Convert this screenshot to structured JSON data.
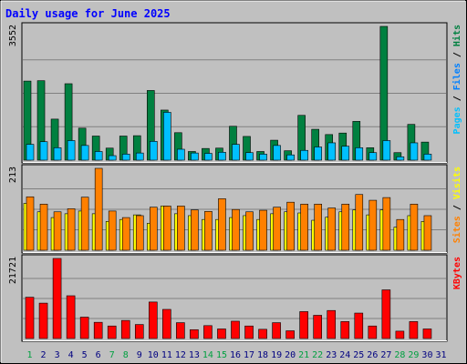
{
  "chart_data": {
    "type": "bar",
    "title": "Daily usage for June 2025",
    "days": [
      "1",
      "2",
      "3",
      "4",
      "5",
      "6",
      "7",
      "8",
      "9",
      "10",
      "11",
      "12",
      "13",
      "14",
      "15",
      "16",
      "17",
      "18",
      "19",
      "20",
      "21",
      "22",
      "23",
      "24",
      "25",
      "26",
      "27",
      "28",
      "29",
      "30",
      "31"
    ],
    "weekend_days": [
      "1",
      "7",
      "8",
      "14",
      "15",
      "21",
      "22",
      "28",
      "29"
    ],
    "colors": {
      "background": "#c0c0c0",
      "title": "#0000ff",
      "hits": "#008040",
      "files": "#0080ff",
      "pages": "#00c0ff",
      "visits": "#ffff00",
      "sites": "#ff8000",
      "kbytes": "#ff0000",
      "weekend_label": "#00a040",
      "weekday_label": "#000080"
    },
    "panels": [
      {
        "id": "hits",
        "max_label": "3552",
        "ymax": 3552,
        "legend": [
          {
            "text": "Pages",
            "color": "#00c0ff"
          },
          {
            "text": " / ",
            "color": "#000000"
          },
          {
            "text": "Files",
            "color": "#0080ff"
          },
          {
            "text": " / ",
            "color": "#000000"
          },
          {
            "text": "Hits",
            "color": "#008040"
          }
        ],
        "series": [
          {
            "name": "Hits",
            "color": "#008040",
            "values": [
              2100,
              2110,
              1090,
              2030,
              850,
              640,
              320,
              640,
              650,
              1850,
              1330,
              730,
              230,
              310,
              320,
              900,
              630,
              230,
              530,
              250,
              1190,
              820,
              680,
              720,
              1030,
              330,
              3552,
              200,
              950,
              480,
              0
            ]
          },
          {
            "name": "Pages",
            "color": "#00c0ff",
            "values": [
              420,
              490,
              330,
              520,
              390,
              230,
              120,
              160,
              190,
              500,
              1270,
              290,
              190,
              180,
              210,
              420,
              200,
              160,
              390,
              140,
              260,
              350,
              460,
              370,
              330,
              200,
              520,
              90,
              460,
              160,
              0
            ]
          }
        ]
      },
      {
        "id": "visits",
        "max_label": "213",
        "ymax": 213,
        "legend": [
          {
            "text": "Sites",
            "color": "#ff8000"
          },
          {
            "text": " / ",
            "color": "#000000"
          },
          {
            "text": "Visits",
            "color": "#ffff00"
          }
        ],
        "series": [
          {
            "name": "Visits",
            "color": "#ffff00",
            "values": [
              122,
              100,
              85,
              95,
              102,
              95,
              75,
              80,
              92,
              70,
              115,
              95,
              90,
              80,
              80,
              85,
              90,
              80,
              95,
              100,
              97,
              78,
              86,
              100,
              105,
              92,
              105,
              60,
              90,
              75,
              0
            ]
          },
          {
            "name": "Sites",
            "color": "#ff8000",
            "values": [
              139,
              120,
              100,
              108,
              138,
              213,
              102,
              85,
              90,
              112,
              115,
              115,
              105,
              101,
              134,
              106,
              100,
              104,
              112,
              125,
              120,
              120,
              110,
              120,
              145,
              130,
              137,
              80,
              120,
              90,
              0
            ]
          }
        ]
      },
      {
        "id": "kbytes",
        "max_label": "21721",
        "ymax": 21721,
        "legend": [
          {
            "text": "KBytes",
            "color": "#ff0000"
          }
        ],
        "series": [
          {
            "name": "KBytes",
            "color": "#ff0000",
            "values": [
              11200,
              9600,
              21721,
              11600,
              5800,
              4400,
              3400,
              4900,
              3800,
              9900,
              7900,
              4300,
              2400,
              3500,
              2600,
              4700,
              3400,
              2500,
              4300,
              2100,
              7300,
              6300,
              7600,
              4600,
              6900,
              3400,
              13200,
              2000,
              4600,
              2600,
              0
            ]
          }
        ]
      }
    ]
  }
}
